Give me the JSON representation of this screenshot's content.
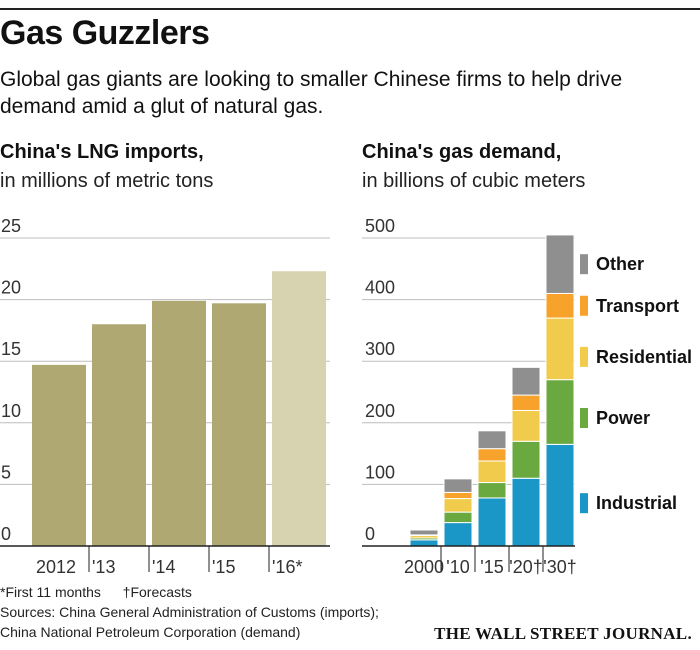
{
  "header": {
    "title": "Gas Guzzlers",
    "subtitle_line1": "Global gas giants are looking to smaller Chinese firms to help drive",
    "subtitle_line2": "demand amid a glut of natural gas."
  },
  "chart_data": [
    {
      "type": "bar",
      "title": "China's LNG imports,",
      "subtitle": "in millions of metric tons",
      "categories": [
        "2012",
        "'13",
        "'14",
        "'15",
        "'16*"
      ],
      "values": [
        14.7,
        18.0,
        19.9,
        19.7,
        22.3
      ],
      "forecast_flags": [
        false,
        false,
        false,
        false,
        true
      ],
      "ylim": [
        0,
        25
      ],
      "yticks": [
        0,
        5,
        10,
        15,
        20,
        25
      ],
      "colors": {
        "actual": "#afa873",
        "partial": "#d7d3b1"
      }
    },
    {
      "type": "bar",
      "stacked": true,
      "title": "China's gas demand,",
      "subtitle": "in billions of cubic meters",
      "categories": [
        "2000",
        "'10",
        "'15",
        "'20†",
        "'30†"
      ],
      "ylim": [
        0,
        500
      ],
      "yticks": [
        0,
        100,
        200,
        300,
        400,
        500
      ],
      "series": [
        {
          "name": "Industrial",
          "color": "#1a97c6",
          "values": [
            10,
            38,
            78,
            110,
            165
          ]
        },
        {
          "name": "Power",
          "color": "#6aa940",
          "values": [
            3,
            17,
            25,
            60,
            105
          ]
        },
        {
          "name": "Residential",
          "color": "#f1cb4b",
          "values": [
            4,
            22,
            35,
            50,
            100
          ]
        },
        {
          "name": "Transport",
          "color": "#f6a22b",
          "values": [
            1,
            10,
            20,
            25,
            40
          ]
        },
        {
          "name": "Other",
          "color": "#8f8f8f",
          "values": [
            8,
            22,
            29,
            45,
            95
          ]
        }
      ],
      "legend": [
        "Other",
        "Transport",
        "Residential",
        "Power",
        "Industrial"
      ]
    }
  ],
  "footnotes": {
    "first": "*First 11 months",
    "forecast": "†Forecasts",
    "sources_line1": "Sources: China General Administration of Customs (imports);",
    "sources_line2": "China National Petroleum Corporation (demand)"
  },
  "masthead": "THE WALL STREET JOURNAL."
}
